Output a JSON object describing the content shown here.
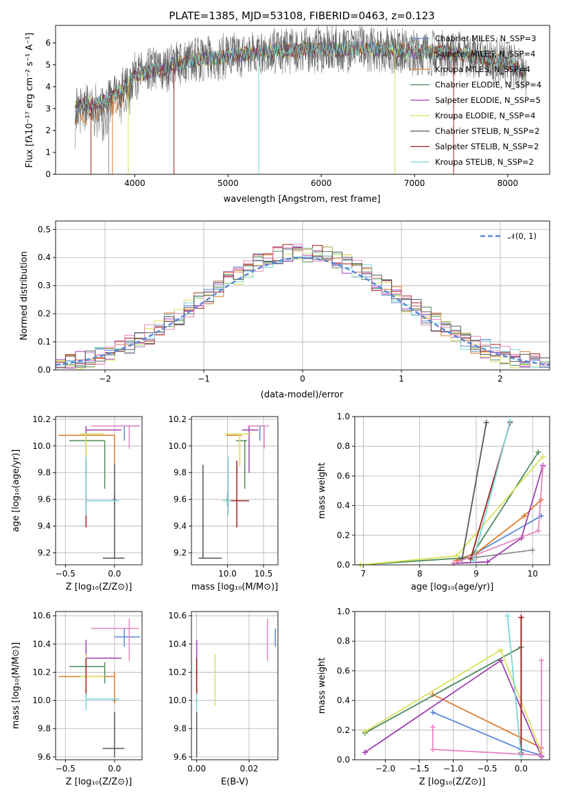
{
  "colors": {
    "cmiles": "#5b87d8",
    "smiles": "#8e8e8e",
    "kmiles": "#e07b2a",
    "celodie": "#4c8a5a",
    "selodie": "#9d3fb1",
    "kelodie": "#d8e35a",
    "cstelib": "#555555",
    "sstelib": "#a01d1d",
    "kstelib": "#78d6d6",
    "pink": "#e585c0"
  },
  "chart_data": [
    {
      "type": "line",
      "title": "PLATE=1385, MJD=53108, FIBERID=0463, z=0.123",
      "xlabel": "wavelength [Angstrom, rest frame]",
      "ylabel": "Flux [fλ10⁻¹⁷ erg cm⁻² s⁻¹ A⁻¹]",
      "xlim": [
        3150,
        8450
      ],
      "ylim": [
        0,
        6.8
      ],
      "xticks": [
        "4000",
        "5000",
        "6000",
        "7000",
        "8000"
      ],
      "yticks": [
        "0",
        "1",
        "2",
        "3",
        "4",
        "5",
        "6"
      ],
      "legend_position": "right",
      "legend": [
        "Chabrier MILES, N_SSP=3",
        "Salpeter MILES, N_SSP=4",
        "Kroupa MILES, N_SSP=4",
        "Chabrier ELODIE, N_SSP=4",
        "Salpeter ELODIE, N_SSP=5",
        "Kroupa ELODIE, N_SSP=4",
        "Chabrier STELIB, N_SSP=2",
        "Salpeter STELIB, N_SSP=2",
        "Kroupa STELIB, N_SSP=2"
      ],
      "continuum": [
        [
          3360,
          3.0
        ],
        [
          3500,
          3.3
        ],
        [
          3600,
          3.2
        ],
        [
          3700,
          3.4
        ],
        [
          3800,
          3.7
        ],
        [
          3900,
          4.0
        ],
        [
          4000,
          4.5
        ],
        [
          4100,
          4.6
        ],
        [
          4200,
          4.8
        ],
        [
          4300,
          4.7
        ],
        [
          4400,
          5.0
        ],
        [
          4600,
          5.2
        ],
        [
          4800,
          5.3
        ],
        [
          5000,
          5.4
        ],
        [
          5200,
          5.5
        ],
        [
          5500,
          5.6
        ],
        [
          6000,
          5.7
        ],
        [
          6500,
          5.75
        ],
        [
          7000,
          5.6
        ],
        [
          7500,
          5.5
        ],
        [
          8000,
          5.1
        ],
        [
          8200,
          4.6
        ]
      ]
    },
    {
      "type": "bar",
      "title": "",
      "xlabel": "(data-model)/error",
      "ylabel": "Normed distribution",
      "xlim": [
        -2.5,
        2.5
      ],
      "ylim": [
        0,
        0.53
      ],
      "xticks": [
        "−2",
        "−1",
        "0",
        "1",
        "2"
      ],
      "yticks": [
        "0.0",
        "0.1",
        "0.2",
        "0.3",
        "0.4",
        "0.5"
      ],
      "legend": [
        "𝒩(0, 1)"
      ],
      "histogram": {
        "bin_edges_start": -2.5,
        "bin_width": 0.1,
        "n_bins": 50
      }
    },
    {
      "type": "scatter",
      "xlabel": "Z [log₁₀(Z/Z⊙)]",
      "ylabel": "age  [log₁₀(age/yr)]",
      "xlim": [
        -0.6,
        0.28
      ],
      "ylim": [
        9.11,
        10.22
      ],
      "xticks": [
        "−0.5",
        "0.0"
      ],
      "yticks": [
        "9.2",
        "9.4",
        "9.6",
        "9.8",
        "10.0",
        "10.2"
      ]
    },
    {
      "type": "scatter",
      "xlabel": "mass [log₁₀(M/M⊙)]",
      "ylabel": "",
      "xlim": [
        9.5,
        10.7
      ],
      "ylim": [
        9.11,
        10.22
      ],
      "xticks": [
        "10.0",
        "10.5"
      ],
      "yticks": [
        "9.2",
        "9.4",
        "9.6",
        "9.8",
        "10.0",
        "10.2"
      ]
    },
    {
      "type": "line",
      "xlabel": "age  [log₁₀(age/yr)]",
      "ylabel": "mass weight",
      "xlim": [
        6.85,
        10.3
      ],
      "ylim": [
        0,
        1.0
      ],
      "xticks": [
        "7",
        "8",
        "9",
        "10"
      ],
      "yticks": [
        "0.0",
        "0.2",
        "0.4",
        "0.6",
        "0.8",
        "1.0"
      ]
    },
    {
      "type": "scatter",
      "xlabel": "Z [log₁₀(Z/Z⊙)]",
      "ylabel": "mass [log₁₀(M/M⊙)]",
      "xlim": [
        -0.6,
        0.28
      ],
      "ylim": [
        9.58,
        10.63
      ],
      "xticks": [
        "−0.5",
        "0.0"
      ],
      "yticks": [
        "9.6",
        "9.8",
        "10.0",
        "10.2",
        "10.4",
        "10.6"
      ]
    },
    {
      "type": "scatter",
      "xlabel": "E(B-V)",
      "ylabel": "",
      "xlim": [
        -0.002,
        0.031
      ],
      "ylim": [
        9.58,
        10.63
      ],
      "xticks": [
        "0.00",
        "0.02"
      ],
      "yticks": [
        "9.6",
        "9.8",
        "10.0",
        "10.2",
        "10.4",
        "10.6"
      ]
    },
    {
      "type": "line",
      "xlabel": "Z [log₁₀(Z/Z⊙)]",
      "ylabel": "mass weight",
      "xlim": [
        -2.45,
        0.42
      ],
      "ylim": [
        0,
        1.0
      ],
      "xticks": [
        "−2.0",
        "−1.5",
        "−1.0",
        "−0.5",
        "0.0"
      ],
      "yticks": [
        "0.0",
        "0.2",
        "0.4",
        "0.6",
        "0.8",
        "1.0"
      ]
    }
  ],
  "fits": [
    {
      "key": "cmiles",
      "Z": 0.1,
      "age": 10.15,
      "age_err": [
        10.04,
        10.15
      ],
      "Z_err": [
        0.0,
        0.26
      ],
      "mass": 10.45,
      "ebv": 0.03,
      "mass_err": [
        10.38,
        10.51
      ],
      "age_w": [
        [
          8.7,
          0.04
        ],
        [
          9.0,
          0.08
        ],
        [
          10.15,
          0.33
        ]
      ],
      "Z_w": [
        [
          -1.3,
          0.32
        ],
        [
          0.0,
          0.07
        ],
        [
          0.3,
          0.03
        ]
      ]
    },
    {
      "key": "smiles",
      "Z": 0.0,
      "age": 9.6,
      "age_err": [
        9.55,
        9.65
      ],
      "Z_err": [
        -0.02,
        0.02
      ],
      "mass": 10.0,
      "ebv": 0.0,
      "mass_err": [
        9.98,
        10.02
      ],
      "age_w": [
        [
          9.0,
          0.05
        ],
        [
          10.0,
          0.1
        ]
      ],
      "Z_w": [
        [
          0.0,
          0.05
        ]
      ]
    },
    {
      "key": "kmiles",
      "Z": 0.0,
      "age": 10.08,
      "age_err": [
        9.85,
        10.08
      ],
      "Z_err": [
        -0.57,
        0.0
      ],
      "mass": 10.17,
      "ebv": 0.0,
      "mass_err": [
        9.98,
        10.2
      ],
      "age_w": [
        [
          8.65,
          0.03
        ],
        [
          9.0,
          0.08
        ],
        [
          9.85,
          0.33
        ],
        [
          10.15,
          0.44
        ]
      ],
      "Z_w": [
        [
          -1.3,
          0.44
        ],
        [
          0.3,
          0.08
        ]
      ]
    },
    {
      "key": "celodie",
      "Z": -0.1,
      "age": 10.04,
      "age_err": [
        9.68,
        10.04
      ],
      "Z_err": [
        -0.46,
        -0.1
      ],
      "mass": 10.24,
      "ebv": 0.0,
      "mass_err": [
        10.12,
        10.27
      ],
      "age_w": [
        [
          6.95,
          0.0
        ],
        [
          8.9,
          0.05
        ],
        [
          10.1,
          0.76
        ]
      ],
      "Z_w": [
        [
          -2.3,
          0.18
        ],
        [
          0.0,
          0.76
        ]
      ]
    },
    {
      "key": "selodie",
      "Z": -0.29,
      "age": 10.12,
      "age_err": [
        9.8,
        10.15
      ],
      "Z_err": [
        -0.29,
        0.07
      ],
      "mass": 10.3,
      "ebv": 0.0,
      "mass_err": [
        10.2,
        10.43
      ],
      "age_w": [
        [
          8.6,
          0.01
        ],
        [
          9.2,
          0.02
        ],
        [
          9.8,
          0.18
        ],
        [
          10.18,
          0.67
        ]
      ],
      "Z_w": [
        [
          -2.3,
          0.05
        ],
        [
          -0.3,
          0.67
        ],
        [
          0.3,
          0.02
        ]
      ]
    },
    {
      "key": "kelodie",
      "Z": -0.29,
      "age": 10.09,
      "age_err": [
        9.85,
        10.09
      ],
      "Z_err": [
        -0.35,
        -0.1
      ],
      "mass": 10.17,
      "ebv": 0.007,
      "mass_err": [
        9.96,
        10.33
      ],
      "age_w": [
        [
          6.95,
          0.0
        ],
        [
          8.65,
          0.06
        ],
        [
          10.18,
          0.73
        ]
      ],
      "Z_w": [
        [
          -2.3,
          0.19
        ],
        [
          -0.3,
          0.74
        ],
        [
          0.3,
          0.05
        ]
      ]
    },
    {
      "key": "cstelib",
      "Z": 0.0,
      "age": 9.16,
      "age_err": [
        9.16,
        9.86
      ],
      "Z_err": [
        -0.12,
        0.1
      ],
      "mass": 9.66,
      "ebv": 0.0,
      "mass_err": [
        9.6,
        9.92
      ],
      "age_w": [
        [
          8.75,
          0.04
        ],
        [
          9.18,
          0.96
        ]
      ],
      "Z_w": [
        [
          0.0,
          0.04
        ],
        [
          0.0,
          0.96
        ]
      ]
    },
    {
      "key": "sstelib",
      "Z": -0.29,
      "age": 9.59,
      "age_err": [
        9.39,
        9.89
      ],
      "Z_err": [
        -0.29,
        -0.29
      ],
      "mass": 10.13,
      "ebv": 0.0,
      "mass_err": [
        10.04,
        10.3
      ],
      "age_w": [
        [
          8.9,
          0.04
        ],
        [
          9.6,
          0.96
        ]
      ],
      "Z_w": [
        [
          0.0,
          0.04
        ],
        [
          0.0,
          0.96
        ]
      ]
    },
    {
      "key": "kstelib",
      "Z": -0.29,
      "age": 9.59,
      "age_err": [
        9.48,
        9.92
      ],
      "Z_err": [
        -0.29,
        0.05
      ],
      "mass": 10.01,
      "ebv": 0.0,
      "mass_err": [
        9.93,
        10.05
      ],
      "age_w": [
        [
          8.95,
          0.03
        ],
        [
          9.6,
          0.97
        ]
      ],
      "Z_w": [
        [
          -0.2,
          0.97
        ],
        [
          0.0,
          0.03
        ]
      ]
    },
    {
      "key": "pink",
      "Z": 0.15,
      "age": 10.15,
      "age_err": [
        9.98,
        10.15
      ],
      "Z_err": [
        -0.24,
        0.25
      ],
      "mass": 10.51,
      "ebv": 0.027,
      "mass_err": [
        10.28,
        10.58
      ],
      "age_w": [
        [
          8.6,
          0.01
        ],
        [
          10.1,
          0.23
        ],
        [
          10.18,
          0.66
        ]
      ],
      "Z_w": [
        [
          -1.3,
          0.22
        ],
        [
          -1.3,
          0.07
        ],
        [
          0.3,
          0.03
        ],
        [
          0.3,
          0.67
        ]
      ]
    }
  ]
}
